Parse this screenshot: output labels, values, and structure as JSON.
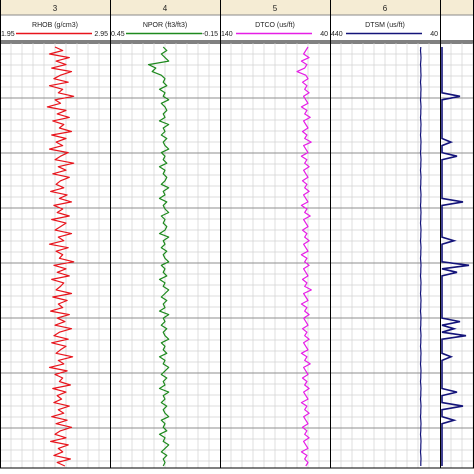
{
  "chart_data": {
    "type": "line",
    "tracks": [
      {
        "number": "3",
        "name": "RHOB (g/cm3)",
        "color": "#e8141c",
        "scale_left": "1.95",
        "scale_right": "2.95",
        "xlim": [
          1.95,
          2.95
        ],
        "values": [
          2.45,
          2.52,
          2.4,
          2.58,
          2.46,
          2.55,
          2.42,
          2.6,
          2.5,
          2.44,
          2.57,
          2.4,
          2.52,
          2.48,
          2.62,
          2.45,
          2.5,
          2.38,
          2.55,
          2.47,
          2.58,
          2.43,
          2.53,
          2.49,
          2.6,
          2.42,
          2.55,
          2.46,
          2.52,
          2.4,
          2.57,
          2.5,
          2.45,
          2.62,
          2.48,
          2.55,
          2.43,
          2.58,
          2.5,
          2.46,
          2.53,
          2.41,
          2.56,
          2.49,
          2.6,
          2.44,
          2.52,
          2.47,
          2.58,
          2.42,
          2.55,
          2.5,
          2.45,
          2.6,
          2.48,
          2.53,
          2.4,
          2.57,
          2.46,
          2.52,
          2.49,
          2.62,
          2.44,
          2.55,
          2.47,
          2.58,
          2.42,
          2.53,
          2.5,
          2.46,
          2.6,
          2.43,
          2.56,
          2.48,
          2.52,
          2.41,
          2.58,
          2.47,
          2.54,
          2.45,
          2.6,
          2.49,
          2.44,
          2.57,
          2.42,
          2.55,
          2.5,
          2.46,
          2.61,
          2.48,
          2.53,
          2.4,
          2.56,
          2.45,
          2.52,
          2.49,
          2.59,
          2.43,
          2.55,
          2.47,
          2.51,
          2.44,
          2.58,
          2.48,
          2.53,
          2.42,
          2.56,
          2.46,
          2.6,
          2.5,
          2.45,
          2.55,
          2.41,
          2.57,
          2.48,
          2.52,
          2.44,
          2.59,
          2.47,
          2.54
        ]
      },
      {
        "number": "4",
        "name": "NPOR (ft3/ft3)",
        "color": "#1e8a1e",
        "scale_left": "0.45",
        "scale_right": "-0.15",
        "xlim": [
          0.45,
          -0.15
        ],
        "values": [
          0.16,
          0.14,
          0.17,
          0.15,
          0.13,
          0.24,
          0.2,
          0.22,
          0.17,
          0.15,
          0.16,
          0.14,
          0.18,
          0.15,
          0.16,
          0.13,
          0.17,
          0.15,
          0.14,
          0.16,
          0.15,
          0.18,
          0.13,
          0.16,
          0.15,
          0.17,
          0.14,
          0.16,
          0.15,
          0.13,
          0.17,
          0.15,
          0.16,
          0.14,
          0.18,
          0.15,
          0.16,
          0.14,
          0.15,
          0.17,
          0.13,
          0.16,
          0.15,
          0.18,
          0.14,
          0.16,
          0.15,
          0.13,
          0.17,
          0.15,
          0.16,
          0.14,
          0.15,
          0.18,
          0.13,
          0.16,
          0.15,
          0.17,
          0.14,
          0.16,
          0.15,
          0.13,
          0.17,
          0.15,
          0.16,
          0.14,
          0.18,
          0.15,
          0.16,
          0.13,
          0.15,
          0.17,
          0.14,
          0.16,
          0.15,
          0.18,
          0.13,
          0.16,
          0.15,
          0.17,
          0.14,
          0.16,
          0.15,
          0.13,
          0.17,
          0.15,
          0.16,
          0.14,
          0.18,
          0.15,
          0.16,
          0.13,
          0.15,
          0.17,
          0.14,
          0.16,
          0.15,
          0.18,
          0.13,
          0.16,
          0.15,
          0.17,
          0.14,
          0.16,
          0.15,
          0.13,
          0.17,
          0.15,
          0.16,
          0.14,
          0.18,
          0.15,
          0.16,
          0.13,
          0.15,
          0.17,
          0.14,
          0.16,
          0.15,
          0.16
        ]
      },
      {
        "number": "5",
        "name": "DTCO (us/ft)",
        "color": "#e61ee6",
        "scale_left": "140",
        "scale_right": "40",
        "xlim": [
          140,
          40
        ],
        "values": [
          60,
          62,
          64,
          59,
          66,
          61,
          63,
          70,
          62,
          60,
          65,
          61,
          63,
          59,
          64,
          62,
          60,
          66,
          61,
          63,
          58,
          64,
          62,
          60,
          65,
          61,
          63,
          57,
          64,
          62,
          60,
          66,
          61,
          63,
          59,
          64,
          62,
          60,
          65,
          61,
          63,
          59,
          64,
          62,
          60,
          66,
          61,
          63,
          58,
          64,
          62,
          60,
          65,
          61,
          63,
          59,
          64,
          62,
          60,
          66,
          61,
          63,
          59,
          64,
          62,
          60,
          65,
          61,
          63,
          57,
          64,
          62,
          60,
          66,
          61,
          63,
          59,
          64,
          62,
          60,
          65,
          61,
          63,
          59,
          64,
          62,
          60,
          66,
          61,
          63,
          58,
          64,
          62,
          60,
          65,
          61,
          63,
          59,
          64,
          62,
          60,
          66,
          61,
          63,
          59,
          64,
          62,
          60,
          65,
          61,
          63,
          59,
          64,
          62,
          60,
          66,
          61,
          63,
          60,
          62
        ]
      },
      {
        "number": "6",
        "name": "DTSM (us/ft)",
        "color": "#14147a",
        "scale_left": "440",
        "scale_right": "40",
        "xlim": [
          440,
          40
        ],
        "values": [
          110,
          111,
          110,
          109,
          110,
          111,
          110,
          110,
          109,
          110,
          111,
          110,
          109,
          110,
          110,
          111,
          110,
          109,
          110,
          110,
          111,
          110,
          109,
          110,
          110,
          111,
          110,
          109,
          110,
          110,
          111,
          110,
          109,
          110,
          110,
          111,
          110,
          109,
          110,
          110,
          111,
          110,
          109,
          110,
          110,
          111,
          110,
          109,
          110,
          110,
          111,
          110,
          109,
          110,
          110,
          111,
          110,
          109,
          110,
          110,
          111,
          110,
          109,
          110,
          110,
          111,
          110,
          109,
          110,
          110,
          111,
          110,
          109,
          110,
          110,
          111,
          110,
          109,
          110,
          110,
          111,
          110,
          109,
          110,
          110,
          111,
          110,
          109,
          110,
          110,
          111,
          110,
          109,
          110,
          110,
          111,
          110,
          109,
          110,
          110,
          111,
          110,
          109,
          110,
          110,
          111,
          110,
          109,
          110,
          110,
          111,
          110,
          109,
          110,
          110,
          111,
          110,
          109,
          110,
          110
        ]
      }
    ],
    "partial_track": {
      "color": "#14147a",
      "values": [
        0,
        0,
        0,
        0,
        0,
        0,
        0,
        0,
        0,
        0,
        0,
        0,
        0,
        0,
        0.6,
        0,
        0,
        0,
        0,
        0,
        0,
        0,
        0,
        0,
        0,
        0,
        0,
        0.3,
        0,
        0,
        0,
        0.5,
        0,
        0,
        0,
        0,
        0,
        0,
        0,
        0,
        0,
        0,
        0,
        0,
        0.7,
        0,
        0,
        0,
        0,
        0,
        0,
        0,
        0,
        0,
        0,
        0.4,
        0,
        0,
        0,
        0,
        0,
        0,
        0.9,
        0,
        0.5,
        0,
        0,
        0,
        0,
        0,
        0,
        0,
        0,
        0,
        0,
        0,
        0,
        0,
        0.6,
        0,
        0.4,
        0,
        0.8,
        0,
        0,
        0,
        0,
        0,
        0.3,
        0,
        0,
        0,
        0,
        0,
        0,
        0,
        0,
        0,
        0.5,
        0,
        0,
        0,
        0.7,
        0,
        0,
        0,
        0.4,
        0,
        0,
        0,
        0,
        0,
        0,
        0,
        0,
        0,
        0,
        0,
        0,
        0
      ]
    },
    "grid": true
  }
}
